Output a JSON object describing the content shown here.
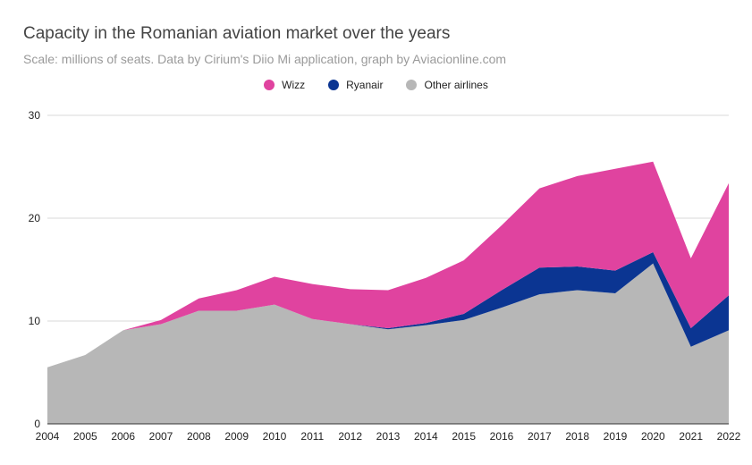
{
  "chart_data": {
    "type": "area",
    "stacked": true,
    "title": "Capacity in the Romanian aviation market over the years",
    "subtitle": "Scale: millions of seats. Data by Cirium's Diio Mi application, graph by Aviacionline.com",
    "xlabel": "",
    "ylabel": "",
    "x": [
      "2004",
      "2005",
      "2006",
      "2007",
      "2008",
      "2009",
      "2010",
      "2011",
      "2012",
      "2013",
      "2014",
      "2015",
      "2016",
      "2017",
      "2018",
      "2019",
      "2020",
      "2021",
      "2022"
    ],
    "ylim": [
      0,
      30
    ],
    "yticks": [
      "0",
      "10",
      "20",
      "30"
    ],
    "grid": true,
    "legend_position": "top",
    "series": [
      {
        "name": "Other airlines",
        "color": "#b7b7b7",
        "values": [
          5.5,
          6.7,
          9.1,
          9.7,
          11.0,
          11.0,
          11.6,
          10.2,
          9.7,
          9.2,
          9.6,
          10.1,
          11.3,
          12.6,
          13.0,
          12.7,
          15.6,
          7.5,
          9.1
        ]
      },
      {
        "name": "Ryanair",
        "color": "#0b3592",
        "values": [
          0,
          0,
          0,
          0,
          0,
          0,
          0,
          0,
          0,
          0.1,
          0.2,
          0.6,
          1.7,
          2.6,
          2.3,
          2.2,
          1.1,
          1.8,
          3.4
        ]
      },
      {
        "name": "Wizz",
        "color": "#e0439f",
        "values": [
          0,
          0,
          0,
          0.4,
          1.2,
          2.0,
          2.7,
          3.4,
          3.4,
          3.7,
          4.4,
          5.2,
          6.3,
          7.7,
          8.8,
          9.9,
          8.8,
          6.8,
          10.9
        ]
      }
    ],
    "legend": [
      {
        "name": "Wizz",
        "color": "#e0439f"
      },
      {
        "name": "Ryanair",
        "color": "#0b3592"
      },
      {
        "name": "Other airlines",
        "color": "#b7b7b7"
      }
    ]
  }
}
